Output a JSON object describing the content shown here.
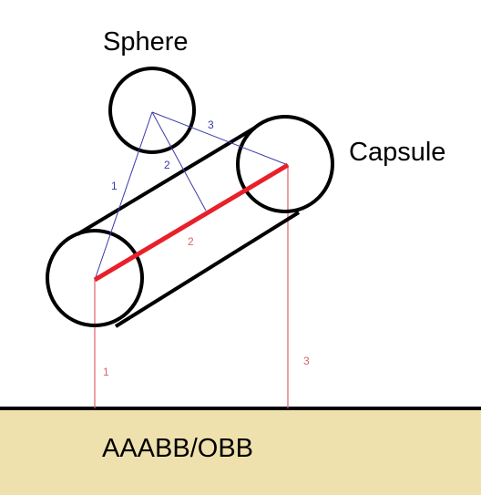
{
  "labels": {
    "sphere": "Sphere",
    "capsule": "Capsule",
    "ground": "AAABB/OBB"
  },
  "blue_numbers": [
    "1",
    "2",
    "3"
  ],
  "red_numbers": [
    "1",
    "2",
    "3"
  ],
  "colors": {
    "outline": "#000000",
    "capsule_axis": "#e8202a",
    "thin_red": "#e0606a",
    "thin_blue": "#3a3aa8",
    "ground_fill": "#efe1ad",
    "background": "#ffffff"
  }
}
